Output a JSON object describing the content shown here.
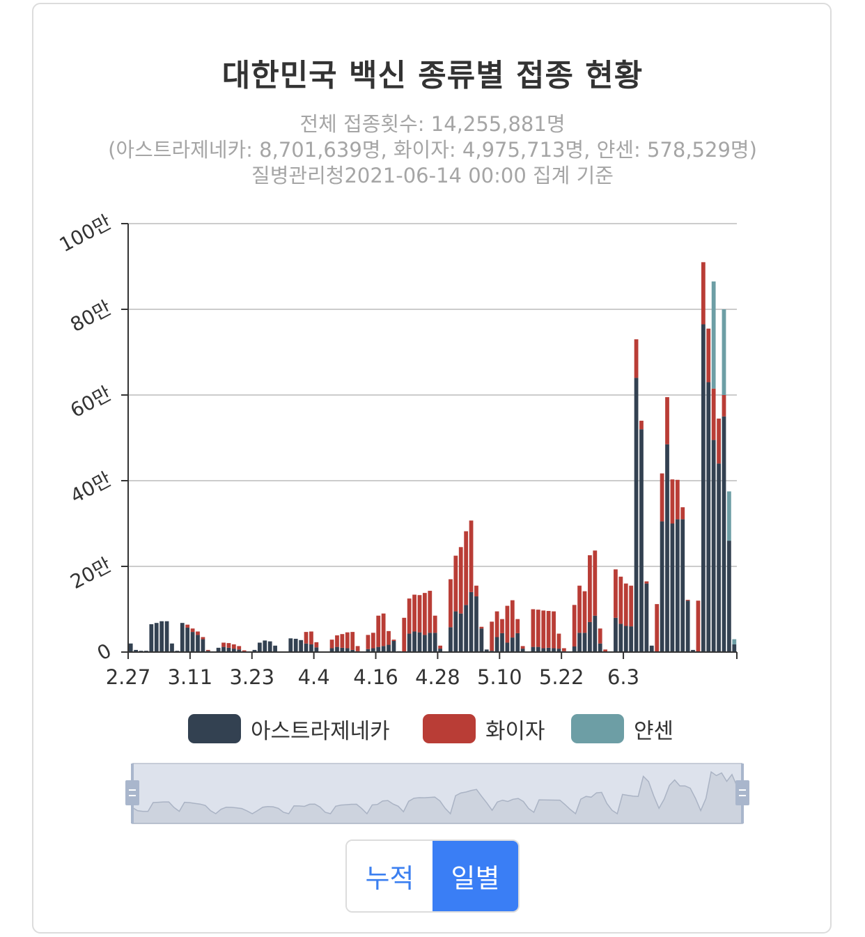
{
  "title": "대한민국 백신 종류별 접종 현황",
  "subtitle": {
    "line1": "전체 접종횟수: 14,255,881명",
    "line2": "(아스트라제네카: 8,701,639명, 화이자: 4,975,713명, 얀센: 578,529명)",
    "line3": "질병관리청2021-06-14 00:00 집계 기준"
  },
  "colors": {
    "astrazeneca": "#334151",
    "pfizer": "#b93d36",
    "janssen": "#6d9ea5",
    "grid": "#cccccc",
    "axis": "#333333",
    "button_active": "#3a7ef5",
    "button_inactive_text": "#3b7ff0"
  },
  "buttons": {
    "cumulative": "누적",
    "daily": "일별"
  },
  "chart_data": {
    "type": "bar",
    "stacked": true,
    "x_start": "2.27",
    "x_tick_labels": [
      "2.27",
      "3.11",
      "3.23",
      "4.4",
      "4.16",
      "4.28",
      "5.10",
      "5.22",
      "6.3"
    ],
    "y_tick_labels": [
      "0",
      "20만",
      "40만",
      "60만",
      "80만",
      "100만"
    ],
    "ylim": [
      0,
      1000000
    ],
    "grid": true,
    "legend_position": "bottom",
    "series": [
      {
        "name": "아스트라제네카",
        "values": [
          20000,
          5000,
          3000,
          3000,
          65000,
          68000,
          72000,
          72000,
          20000,
          3000,
          68000,
          57000,
          47000,
          40000,
          30000,
          3000,
          0,
          10000,
          12000,
          10000,
          8000,
          6000,
          1000,
          0,
          5000,
          22000,
          27000,
          25000,
          15000,
          1000,
          0,
          32000,
          31000,
          28000,
          20000,
          18000,
          11000,
          1000,
          0,
          9000,
          12000,
          10000,
          9000,
          5000,
          2000,
          0,
          7000,
          9000,
          12000,
          14000,
          17000,
          26000,
          2000,
          0,
          43000,
          48000,
          46000,
          40000,
          45000,
          45000,
          8000,
          0,
          58000,
          95000,
          90000,
          110000,
          140000,
          130000,
          55000,
          6000,
          3000,
          35000,
          44000,
          22000,
          34000,
          44000,
          8000,
          1000,
          12000,
          12000,
          9000,
          10000,
          9000,
          8000,
          2000,
          0,
          13000,
          45000,
          45000,
          70000,
          85000,
          20000,
          1000,
          0,
          80000,
          66000,
          61000,
          60000,
          640000,
          520000,
          160000,
          15000,
          0,
          305000,
          485000,
          300000,
          310000,
          310000,
          120000,
          5000,
          0,
          765000,
          630000,
          495000,
          440000,
          550000,
          260000,
          18000
        ]
      },
      {
        "name": "화이자",
        "values": [
          0,
          0,
          0,
          0,
          0,
          0,
          0,
          0,
          0,
          0,
          0,
          7000,
          8000,
          8000,
          5000,
          2000,
          0,
          0,
          10000,
          11000,
          10000,
          8000,
          3000,
          0,
          0,
          0,
          0,
          0,
          0,
          0,
          0,
          0,
          0,
          0,
          27000,
          30000,
          12000,
          0,
          0,
          20000,
          27000,
          32000,
          37000,
          42000,
          12000,
          0,
          33000,
          36000,
          73000,
          76000,
          32000,
          3000,
          0,
          80000,
          82000,
          86000,
          87000,
          98000,
          98000,
          40000,
          7000,
          0,
          112000,
          130000,
          155000,
          172000,
          167000,
          25000,
          4000,
          0,
          68000,
          60000,
          33000,
          86000,
          87000,
          33000,
          6000,
          0,
          88000,
          87000,
          88000,
          86000,
          86000,
          35000,
          7000,
          0,
          97000,
          110000,
          97000,
          156000,
          152000,
          35000,
          5000,
          0,
          113000,
          110000,
          99000,
          95000,
          90000,
          20000,
          5000,
          0,
          112000,
          112000,
          110000,
          103000,
          92000,
          28000,
          2000,
          0,
          120000,
          145000,
          125000,
          120000,
          105000,
          50000,
          0,
          0
        ]
      },
      {
        "name": "얀센",
        "values": [
          0,
          0,
          0,
          0,
          0,
          0,
          0,
          0,
          0,
          0,
          0,
          0,
          0,
          0,
          0,
          0,
          0,
          0,
          0,
          0,
          0,
          0,
          0,
          0,
          0,
          0,
          0,
          0,
          0,
          0,
          0,
          0,
          0,
          0,
          0,
          0,
          0,
          0,
          0,
          0,
          0,
          0,
          0,
          0,
          0,
          0,
          0,
          0,
          0,
          0,
          0,
          0,
          0,
          0,
          0,
          0,
          0,
          0,
          0,
          0,
          0,
          0,
          0,
          0,
          0,
          0,
          0,
          0,
          0,
          0,
          0,
          0,
          0,
          0,
          0,
          0,
          0,
          0,
          0,
          0,
          0,
          0,
          0,
          0,
          0,
          0,
          0,
          0,
          0,
          0,
          0,
          0,
          0,
          0,
          0,
          0,
          0,
          0,
          0,
          0,
          0,
          0,
          0,
          0,
          0,
          0,
          0,
          0,
          0,
          0,
          0,
          0,
          0,
          250000,
          0,
          200000,
          115000,
          12000
        ]
      }
    ]
  }
}
